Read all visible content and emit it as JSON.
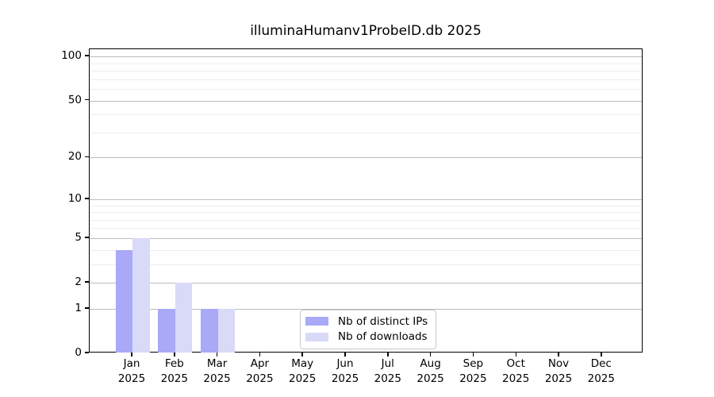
{
  "chart_data": {
    "type": "bar",
    "title": "illuminaHumanv1ProbeID.db 2025",
    "year": "2025",
    "categories": [
      "Jan",
      "Feb",
      "Mar",
      "Apr",
      "May",
      "Jun",
      "Jul",
      "Aug",
      "Sep",
      "Oct",
      "Nov",
      "Dec"
    ],
    "series": [
      {
        "name": "Nb of distinct IPs",
        "color": "#a9a9f8",
        "values": [
          4,
          1,
          1,
          0,
          0,
          0,
          0,
          0,
          0,
          0,
          0,
          0
        ]
      },
      {
        "name": "Nb of downloads",
        "color": "#d9d9f8",
        "values": [
          5,
          2,
          1,
          0,
          0,
          0,
          0,
          0,
          0,
          0,
          0,
          0
        ]
      }
    ],
    "y_axis": {
      "scale": "log1p",
      "major_ticks": [
        0,
        1,
        2,
        5,
        10,
        20,
        50,
        100
      ],
      "minor_gridlines": [
        3,
        4,
        6,
        7,
        8,
        9,
        30,
        40,
        60,
        70,
        80,
        90
      ],
      "range_top": 112
    },
    "x_axis": {
      "tick_label_second_line": "2025"
    },
    "grid": true,
    "legend_position": "bottom-center",
    "colors": {
      "bar_distinct_ips": "#a9a9f8",
      "bar_downloads": "#d9d9f8",
      "major_grid": "#bdbdbd",
      "minor_grid": "#ededed",
      "spine": "#000000",
      "background": "#ffffff"
    }
  }
}
